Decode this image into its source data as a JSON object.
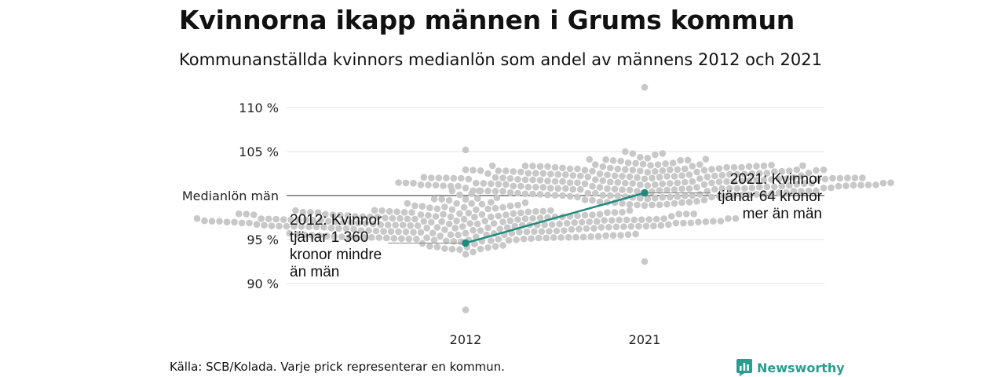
{
  "title": "Kvinnorna ikapp männen i Grums kommun",
  "subtitle": "Kommunanställda kvinnors medianlön som andel av männens 2012 och 2021",
  "footer": "Källa: SCB/Kolada. Varje prick representerar en kommun.",
  "brand": {
    "name": "Newsworthy",
    "logo_icon": "bar-chart-speech-bubble-icon",
    "color": "#2a9d8f"
  },
  "chart_data": {
    "type": "scatter",
    "x": [
      "2012",
      "2021"
    ],
    "ylim": [
      86,
      112
    ],
    "yticks": [
      {
        "value": 90,
        "label": "90 %"
      },
      {
        "value": 95,
        "label": "95 %"
      },
      {
        "value": 100,
        "label": "Medianlön män"
      },
      {
        "value": 105,
        "label": "105 %"
      },
      {
        "value": 110,
        "label": "110 %"
      }
    ],
    "reference_line": {
      "value": 100,
      "label": "Medianlön män"
    },
    "beeswarm": {
      "color": "#c8c8c8",
      "2012": {
        "median": 96.8,
        "min": 87.0,
        "max": 105.2
      },
      "2021": {
        "median": 101.5,
        "min": 92.5,
        "max": 112.3
      }
    },
    "highlight": {
      "color": "#1f8a7c",
      "values": [
        94.6,
        100.3
      ],
      "annotations": [
        "2012: Kvinnor\ntjänar 1 360\nkronor mindre\nän män",
        "2021: Kvinnor\ntjänar 64 kronor\nmer än män"
      ]
    }
  }
}
